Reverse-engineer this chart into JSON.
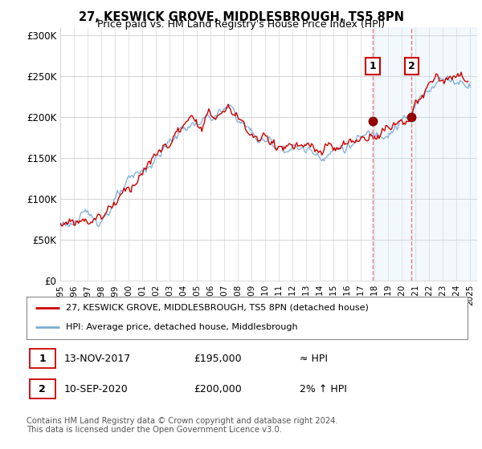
{
  "title": "27, KESWICK GROVE, MIDDLESBROUGH, TS5 8PN",
  "subtitle": "Price paid vs. HM Land Registry's House Price Index (HPI)",
  "ylabel_ticks": [
    "£0",
    "£50K",
    "£100K",
    "£150K",
    "£200K",
    "£250K",
    "£300K"
  ],
  "ytick_values": [
    0,
    50000,
    100000,
    150000,
    200000,
    250000,
    300000
  ],
  "ylim": [
    0,
    310000
  ],
  "xlim_start": 1995.0,
  "xlim_end": 2025.5,
  "hpi_color": "#7aadd4",
  "price_color": "#cc0000",
  "dashed_color": "#e08080",
  "shade_color": "#d0e4f4",
  "marker1_x": 2017.87,
  "marker1_y": 195000,
  "marker2_x": 2020.71,
  "marker2_y": 200000,
  "ann1_y": 262000,
  "ann2_y": 262000,
  "legend_house_label": "27, KESWICK GROVE, MIDDLESBROUGH, TS5 8PN (detached house)",
  "legend_hpi_label": "HPI: Average price, detached house, Middlesbrough",
  "table_row1": [
    "1",
    "13-NOV-2017",
    "£195,000",
    "≈ HPI"
  ],
  "table_row2": [
    "2",
    "10-SEP-2020",
    "£200,000",
    "2% ↑ HPI"
  ],
  "footer": "Contains HM Land Registry data © Crown copyright and database right 2024.\nThis data is licensed under the Open Government Licence v3.0.",
  "background_color": "#ffffff",
  "plot_background": "#ffffff",
  "grid_color": "#cccccc",
  "dashed_line1_x": 2017.87,
  "dashed_line2_x": 2020.71
}
